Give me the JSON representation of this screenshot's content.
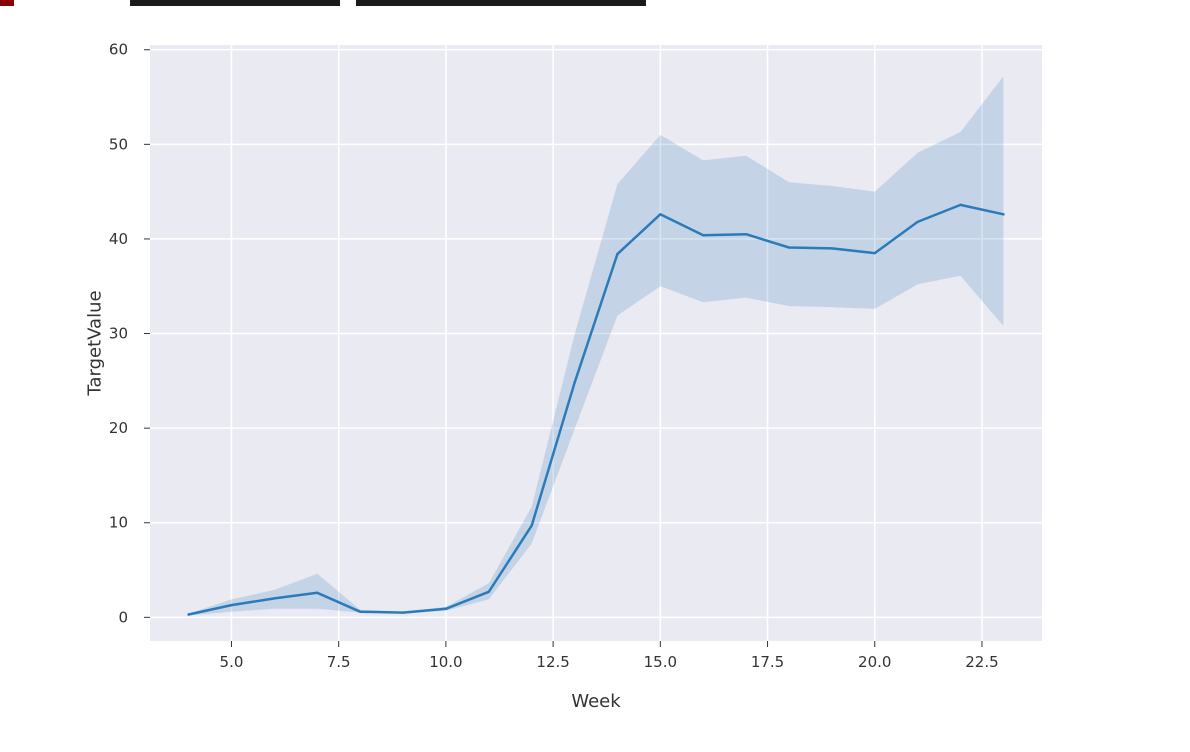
{
  "chart_data": {
    "type": "line",
    "xlabel": "Week",
    "ylabel": "TargetValue",
    "xlim": [
      3.1,
      23.9
    ],
    "ylim": [
      -2.5,
      60.5
    ],
    "xticks": [
      5.0,
      7.5,
      10.0,
      12.5,
      15.0,
      17.5,
      20.0,
      22.5
    ],
    "xtick_labels": [
      "5.0",
      "7.5",
      "10.0",
      "12.5",
      "15.0",
      "17.5",
      "20.0",
      "22.5"
    ],
    "yticks": [
      0,
      10,
      20,
      30,
      40,
      50,
      60
    ],
    "ytick_labels": [
      "0",
      "10",
      "20",
      "30",
      "40",
      "50",
      "60"
    ],
    "grid": true,
    "series": [
      {
        "x": [
          4,
          5,
          6,
          7,
          8,
          9,
          10,
          11,
          12,
          13,
          14,
          15,
          16,
          17,
          18,
          19,
          20,
          21,
          22,
          23
        ],
        "values": [
          0.3,
          1.3,
          2.0,
          2.6,
          0.6,
          0.5,
          0.9,
          2.7,
          9.7,
          24.8,
          38.4,
          42.6,
          40.4,
          40.5,
          39.1,
          39.0,
          38.5,
          41.8,
          43.6,
          42.6
        ],
        "ci_lower": [
          0.2,
          0.6,
          0.9,
          0.9,
          0.5,
          0.4,
          0.7,
          1.9,
          7.8,
          19.9,
          31.9,
          35.0,
          33.3,
          33.8,
          32.9,
          32.8,
          32.6,
          35.2,
          36.1,
          30.8
        ],
        "ci_upper": [
          0.4,
          1.9,
          2.9,
          4.6,
          0.8,
          0.6,
          1.1,
          3.6,
          11.7,
          29.9,
          45.8,
          51.0,
          48.3,
          48.8,
          46.0,
          45.6,
          45.0,
          49.1,
          51.3,
          57.2
        ],
        "color": "#2b7bba",
        "ci_color": "#2b7bba"
      }
    ],
    "colors": {
      "plot_background": "#eaeaf2",
      "grid": "#ffffff",
      "tick": "#333333"
    }
  }
}
